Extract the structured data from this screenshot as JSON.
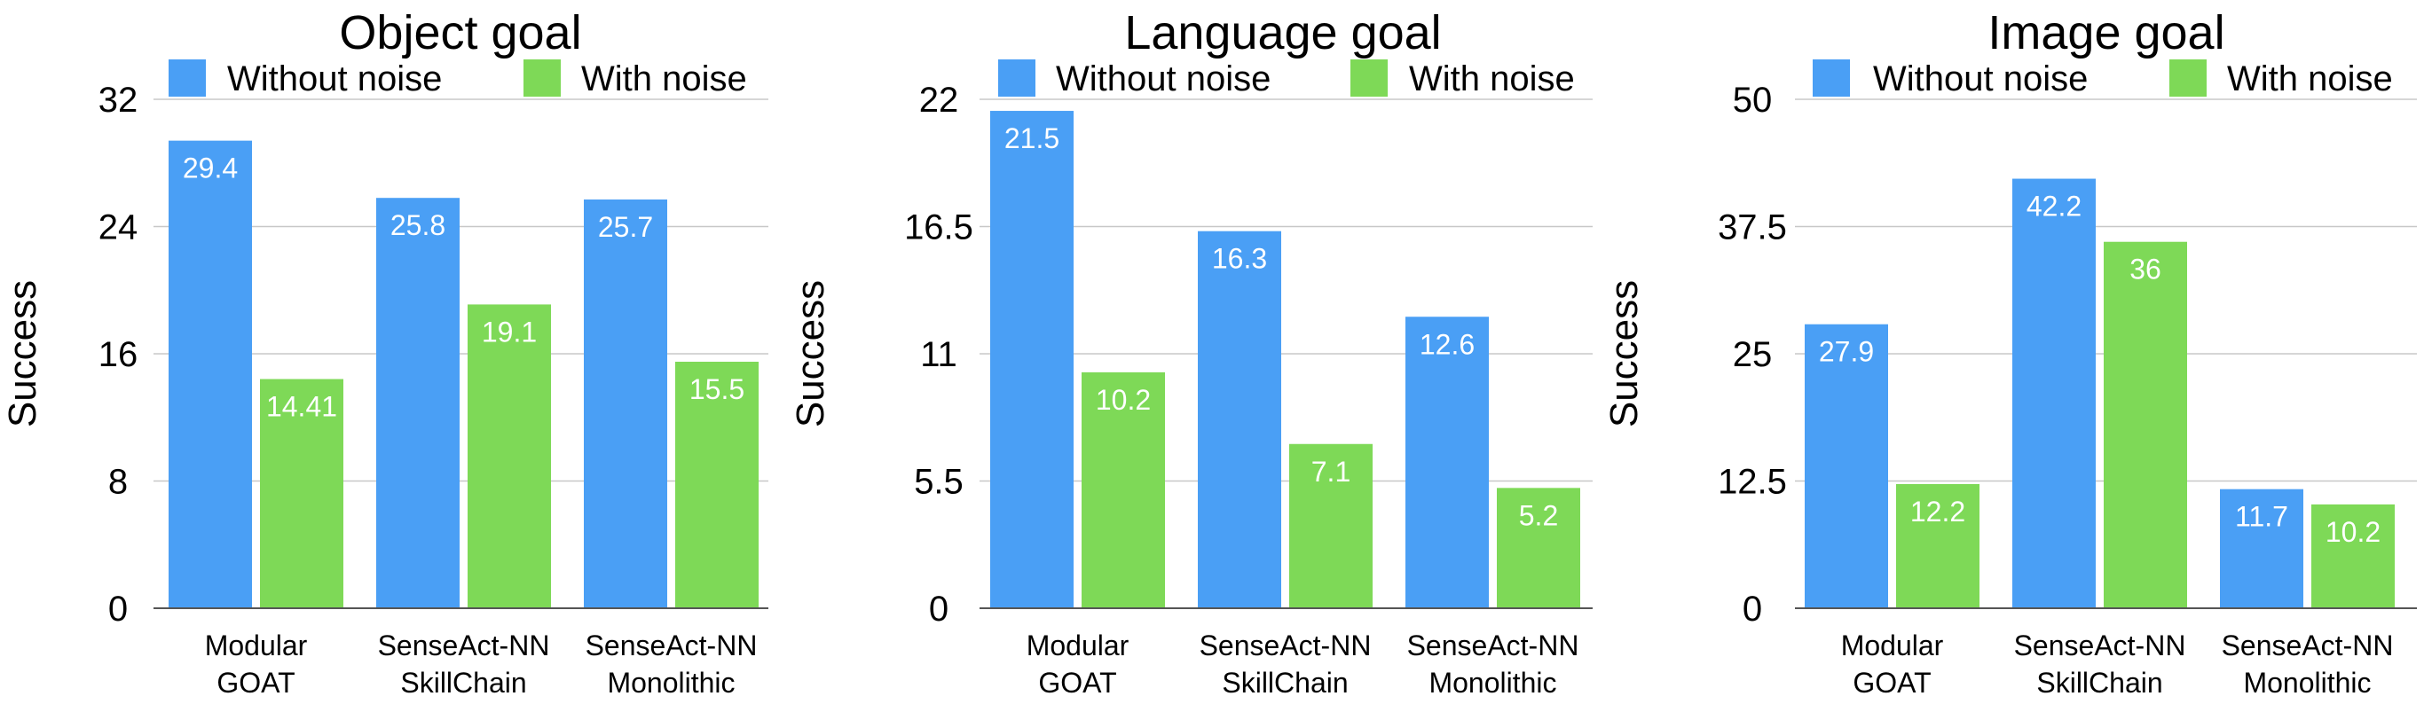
{
  "colors": {
    "without_noise": "#4A9FF5",
    "with_noise": "#7ED957",
    "grid": "#c8c8c8",
    "axis": "#555555"
  },
  "chart_data": [
    {
      "type": "bar",
      "title": "Object goal",
      "ylabel": "Success",
      "xlabel": "",
      "categories": [
        [
          "Modular",
          "GOAT"
        ],
        [
          "SenseAct-NN",
          "SkillChain"
        ],
        [
          "SenseAct-NN",
          "Monolithic"
        ]
      ],
      "series": [
        {
          "name": "Without noise",
          "values": [
            29.4,
            25.8,
            25.7
          ],
          "labels": [
            "29.4",
            "25.8",
            "25.7"
          ]
        },
        {
          "name": "With noise",
          "values": [
            14.41,
            19.1,
            15.5
          ],
          "labels": [
            "14.41",
            "19.1",
            "15.5"
          ]
        }
      ],
      "ylim": [
        0,
        32
      ],
      "yticks": [
        "0",
        "8",
        "16",
        "24",
        "32"
      ],
      "grid": true,
      "legend": "top"
    },
    {
      "type": "bar",
      "title": "Language goal",
      "ylabel": "Success",
      "xlabel": "",
      "categories": [
        [
          "Modular",
          "GOAT"
        ],
        [
          "SenseAct-NN",
          "SkillChain"
        ],
        [
          "SenseAct-NN",
          "Monolithic"
        ]
      ],
      "series": [
        {
          "name": "Without noise",
          "values": [
            21.5,
            16.3,
            12.6
          ],
          "labels": [
            "21.5",
            "16.3",
            "12.6"
          ]
        },
        {
          "name": "With noise",
          "values": [
            10.2,
            7.1,
            5.2
          ],
          "labels": [
            "10.2",
            "7.1",
            "5.2"
          ]
        }
      ],
      "ylim": [
        0,
        22
      ],
      "yticks": [
        "0",
        "5.5",
        "11",
        "16.5",
        "22"
      ],
      "grid": true,
      "legend": "top"
    },
    {
      "type": "bar",
      "title": "Image goal",
      "ylabel": "Success",
      "xlabel": "",
      "categories": [
        [
          "Modular",
          "GOAT"
        ],
        [
          "SenseAct-NN",
          "SkillChain"
        ],
        [
          "SenseAct-NN",
          "Monolithic"
        ]
      ],
      "series": [
        {
          "name": "Without noise",
          "values": [
            27.9,
            42.2,
            11.7
          ],
          "labels": [
            "27.9",
            "42.2",
            "11.7"
          ]
        },
        {
          "name": "With noise",
          "values": [
            12.2,
            36,
            10.2
          ],
          "labels": [
            "12.2",
            "36",
            "10.2"
          ]
        }
      ],
      "ylim": [
        0,
        50
      ],
      "yticks": [
        "0",
        "12.5",
        "25",
        "37.5",
        "50"
      ],
      "grid": true,
      "legend": "top"
    }
  ]
}
